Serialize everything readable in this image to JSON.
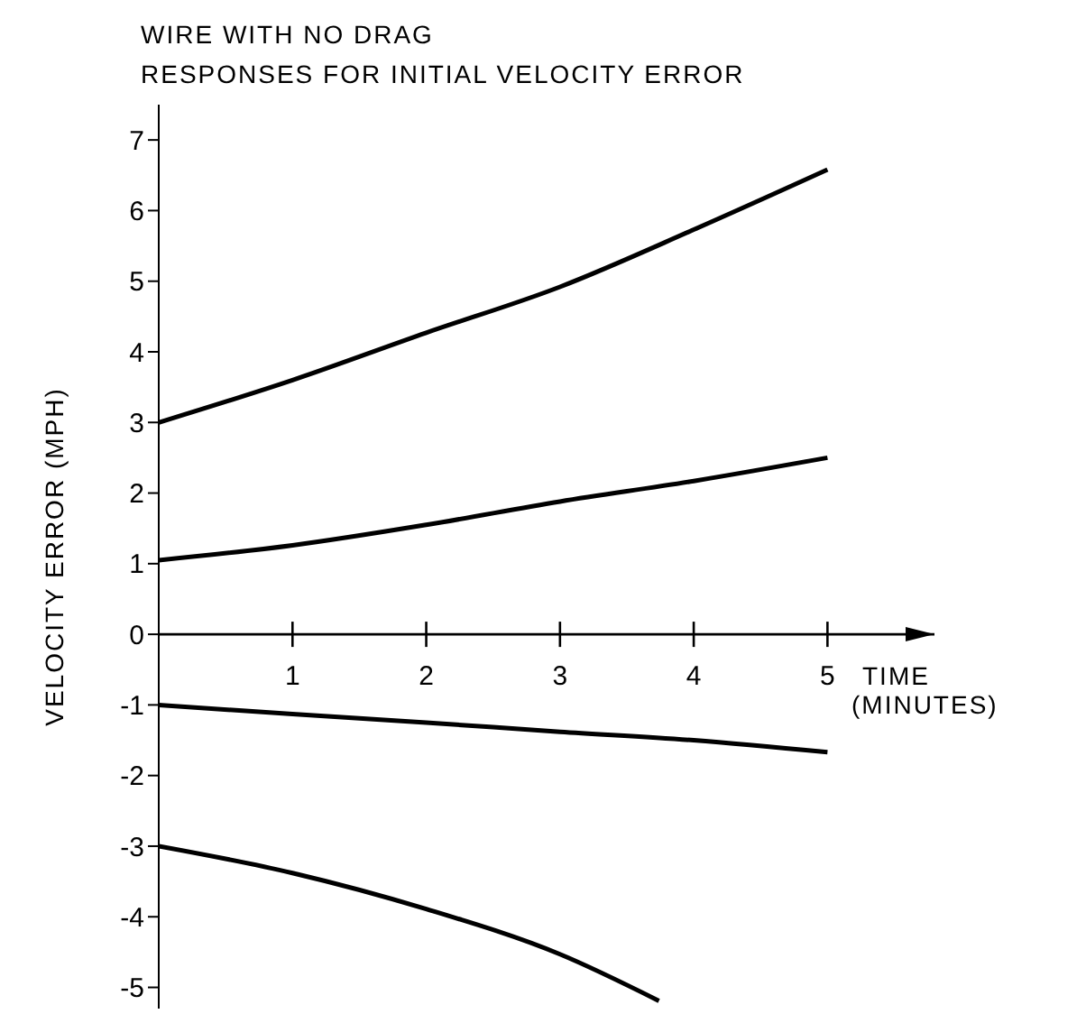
{
  "chart_data": {
    "type": "line",
    "title": "WIRE WITH NO DRAG",
    "subtitle": "RESPONSES FOR INITIAL VELOCITY ERROR",
    "xlabel": "TIME (MINUTES)",
    "ylabel": "VELOCITY ERROR (MPH)",
    "xlim": [
      0,
      5.8
    ],
    "xticks": [
      1,
      2,
      3,
      4,
      5
    ],
    "ylim": [
      -5.3,
      7.5
    ],
    "yticks": [
      -5,
      -4,
      -3,
      -2,
      -1,
      0,
      1,
      2,
      3,
      4,
      5,
      6,
      7
    ],
    "series": [
      {
        "color": "#000000",
        "x": [
          0,
          1,
          2,
          3,
          4,
          5
        ],
        "values": [
          3,
          3.6,
          4.27,
          4.92,
          5.73,
          6.58
        ]
      },
      {
        "color": "#000000",
        "x": [
          0,
          1,
          2,
          3,
          4,
          5
        ],
        "values": [
          1.05,
          1.26,
          1.55,
          1.88,
          2.17,
          2.5
        ]
      },
      {
        "color": "#000000",
        "x": [
          0,
          1,
          2,
          3,
          4,
          5
        ],
        "values": [
          -1,
          -1.13,
          -1.25,
          -1.38,
          -1.5,
          -1.67
        ]
      },
      {
        "color": "#000000",
        "x": [
          0,
          1,
          2,
          3,
          3.74
        ],
        "values": [
          -3,
          -3.38,
          -3.89,
          -4.53,
          -5.19
        ]
      }
    ]
  }
}
